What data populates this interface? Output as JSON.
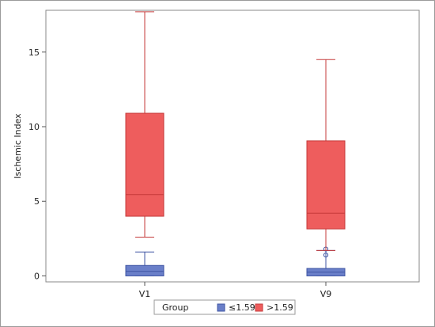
{
  "chart_data": {
    "type": "box",
    "title": "",
    "xlabel": "",
    "ylabel": "Ischemic Index",
    "categories": [
      "V1",
      "V9"
    ],
    "ylim": [
      -0.4,
      17.8
    ],
    "yticks": [
      0,
      5,
      10,
      15
    ],
    "grid": false,
    "legend_position": "bottom",
    "legend_title": "Group",
    "series": [
      {
        "name": "≤1.59",
        "color": "#6a7fc9",
        "edge_color": "#3f55a3",
        "boxes": [
          {
            "category": "V1",
            "q1": 0.0,
            "median": 0.3,
            "q3": 0.7,
            "whisker_low": 0.0,
            "whisker_high": 1.6,
            "outliers": []
          },
          {
            "category": "V9",
            "q1": 0.0,
            "median": 0.25,
            "q3": 0.5,
            "whisker_low": 0.0,
            "whisker_high": 1.7,
            "outliers": [
              1.4,
              1.8
            ]
          }
        ]
      },
      {
        "name": ">1.59",
        "color": "#ee5d5d",
        "edge_color": "#c53a3a",
        "boxes": [
          {
            "category": "V1",
            "q1": 4.0,
            "median": 5.45,
            "q3": 10.9,
            "whisker_low": 2.6,
            "whisker_high": 17.7,
            "outliers": []
          },
          {
            "category": "V9",
            "q1": 3.15,
            "median": 4.2,
            "q3": 9.05,
            "whisker_low": 1.7,
            "whisker_high": 14.5,
            "outliers": []
          }
        ]
      }
    ]
  }
}
